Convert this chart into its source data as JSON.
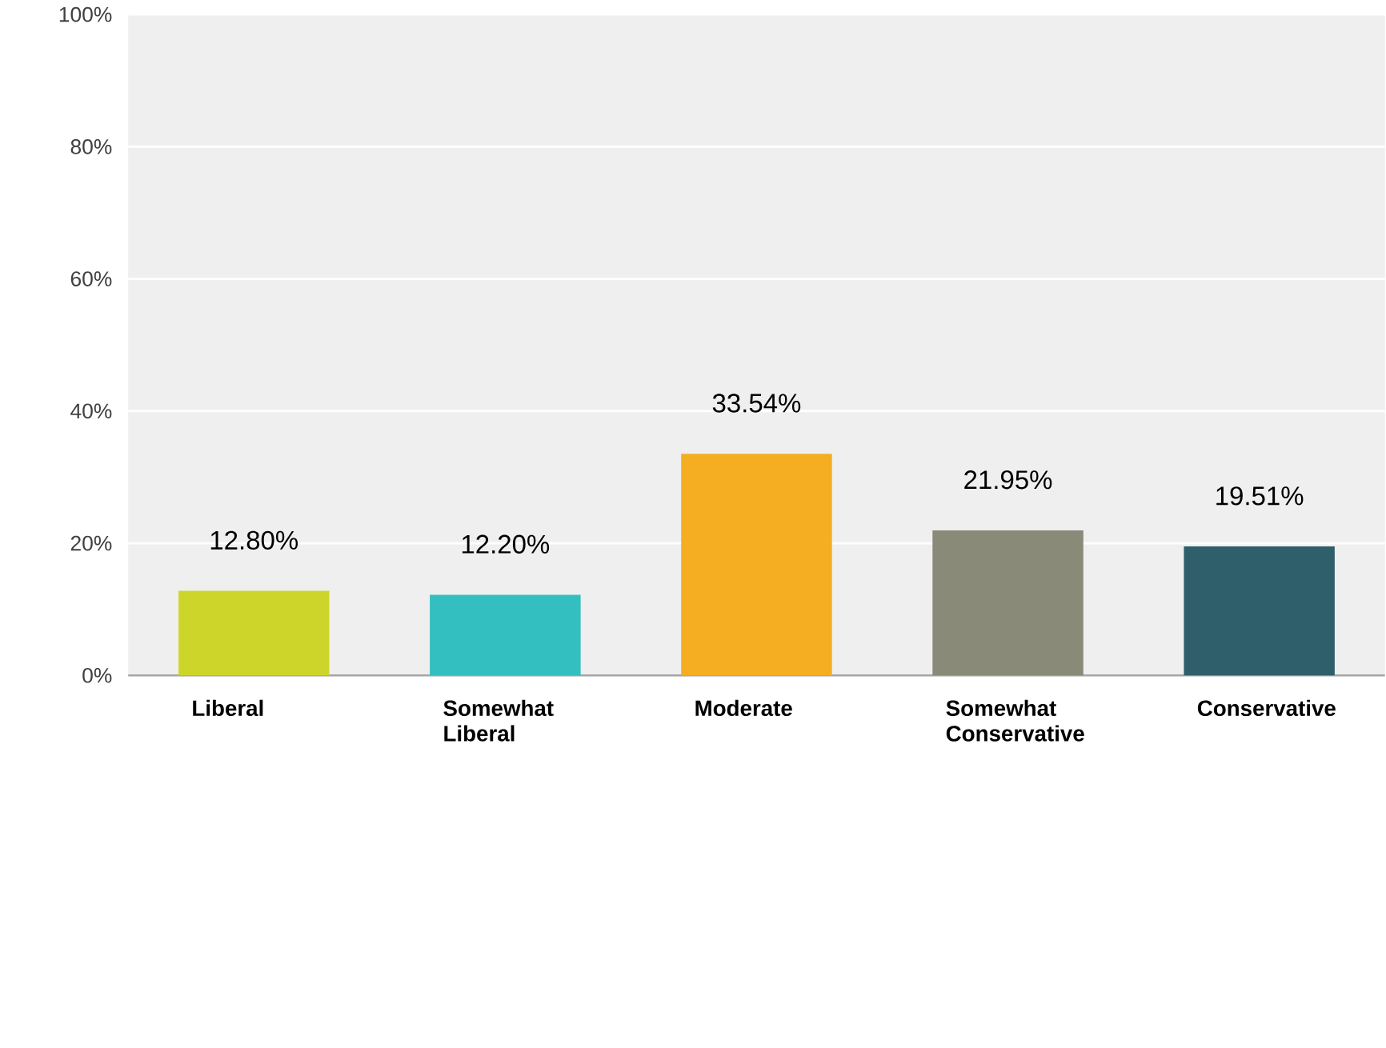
{
  "chart_data": {
    "type": "bar",
    "categories": [
      "Liberal",
      "Somewhat Liberal",
      "Moderate",
      "Somewhat Conservative",
      "Conservative"
    ],
    "values": [
      12.8,
      12.2,
      33.54,
      21.95,
      19.51
    ],
    "colors": [
      "#cdd52a",
      "#33bfbf",
      "#f5ae22",
      "#898a77",
      "#2e5f6b"
    ],
    "value_labels": [
      "12.80%",
      "12.20%",
      "33.54%",
      "21.95%",
      "19.51%"
    ],
    "ylim": [
      0,
      100
    ],
    "yticks": [
      {
        "value": 0,
        "label": "0%"
      },
      {
        "value": 20,
        "label": "20%"
      },
      {
        "value": 40,
        "label": "40%"
      },
      {
        "value": 60,
        "label": "60%"
      },
      {
        "value": 80,
        "label": "80%"
      },
      {
        "value": 100,
        "label": "100%"
      }
    ],
    "grid": "y"
  }
}
